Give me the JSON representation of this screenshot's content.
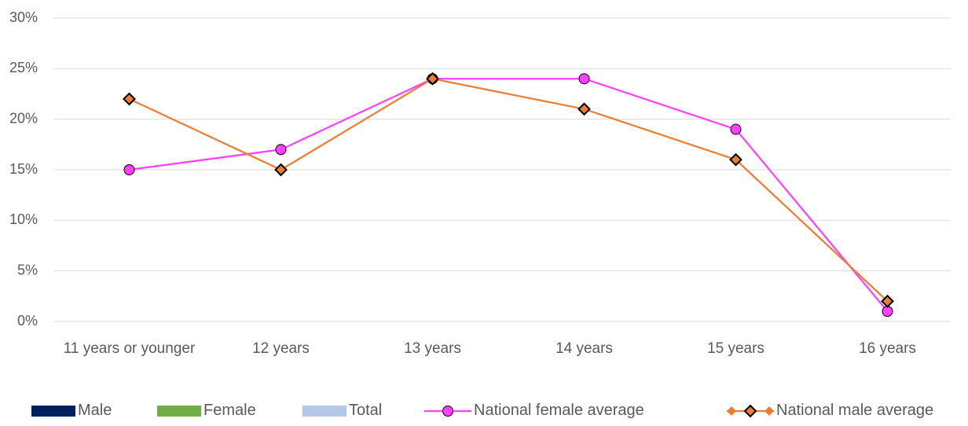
{
  "chart_data": {
    "type": "line",
    "categories": [
      "11 years or younger",
      "12 years",
      "13 years",
      "14 years",
      "15 years",
      "16 years"
    ],
    "ylim": [
      0,
      30
    ],
    "yticks": [
      {
        "value": 0,
        "label": "0%"
      },
      {
        "value": 5,
        "label": "5%"
      },
      {
        "value": 10,
        "label": "10%"
      },
      {
        "value": 15,
        "label": "15%"
      },
      {
        "value": 20,
        "label": "20%"
      },
      {
        "value": 25,
        "label": "25%"
      },
      {
        "value": 30,
        "label": "30%"
      }
    ],
    "grid": true,
    "series": [
      {
        "name": "Male",
        "type": "bar",
        "color": "#002060",
        "values": [
          null,
          null,
          null,
          null,
          null,
          null
        ]
      },
      {
        "name": "Female",
        "type": "bar",
        "color": "#70ad47",
        "values": [
          null,
          null,
          null,
          null,
          null,
          null
        ]
      },
      {
        "name": "Total",
        "type": "bar",
        "color": "#b4c7e7",
        "values": [
          null,
          null,
          null,
          null,
          null,
          null
        ]
      },
      {
        "name": "National female average",
        "type": "line",
        "marker": "circle",
        "color": "#ff40ff",
        "values": [
          15,
          17,
          24,
          24,
          19,
          1
        ]
      },
      {
        "name": "National male average",
        "type": "line",
        "marker": "diamond",
        "color": "#ed7d31",
        "values": [
          22,
          15,
          24,
          21,
          16,
          2
        ]
      }
    ]
  }
}
